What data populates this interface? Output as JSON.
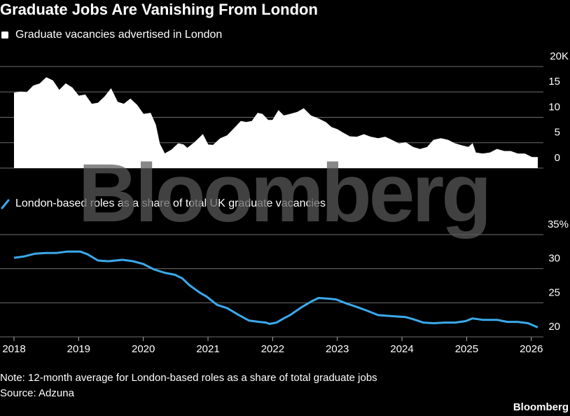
{
  "title": "Graduate Jobs Are Vanishing From London",
  "watermark": "Bloomberg",
  "note": "Note: 12-month average for London-based roles as a share of total graduate jobs",
  "source": "Source: Adzuna",
  "brand": "Bloomberg",
  "chart_data": [
    {
      "type": "area",
      "legend_marker": "square",
      "grid": true,
      "x": [
        2018.0,
        2018.1,
        2018.2,
        2018.3,
        2018.4,
        2018.5,
        2018.6,
        2018.7,
        2018.8,
        2018.9,
        2019.0,
        2019.1,
        2019.2,
        2019.3,
        2019.4,
        2019.5,
        2019.6,
        2019.7,
        2019.8,
        2019.9,
        2020.0,
        2020.11,
        2020.19,
        2020.25,
        2020.33,
        2020.44,
        2020.54,
        2020.62,
        2020.68,
        2020.79,
        2020.92,
        2021.0,
        2021.08,
        2021.19,
        2021.3,
        2021.39,
        2021.51,
        2021.59,
        2021.68,
        2021.77,
        2021.84,
        2021.93,
        2022.0,
        2022.09,
        2022.17,
        2022.27,
        2022.38,
        2022.48,
        2022.59,
        2022.71,
        2022.82,
        2022.91,
        2023.0,
        2023.09,
        2023.19,
        2023.3,
        2023.41,
        2023.52,
        2023.63,
        2023.74,
        2023.84,
        2023.95,
        2024.06,
        2024.17,
        2024.28,
        2024.39,
        2024.49,
        2024.6,
        2024.71,
        2024.82,
        2024.93,
        2025.03,
        2025.09,
        2025.14,
        2025.25,
        2025.36,
        2025.47,
        2025.58,
        2025.68,
        2025.79,
        2025.9,
        2026.01,
        2026.1
      ],
      "series": [
        {
          "name": "Graduate vacancies advertised in London",
          "color": "#ffffff",
          "values": [
            14.8,
            15.0,
            14.9,
            16.2,
            16.6,
            17.8,
            17.2,
            15.3,
            16.6,
            15.8,
            14.2,
            14.4,
            12.6,
            12.8,
            14.0,
            15.6,
            13.0,
            12.6,
            13.6,
            12.4,
            10.6,
            10.8,
            8.5,
            4.8,
            2.8,
            3.6,
            4.8,
            4.6,
            3.9,
            5.0,
            6.6,
            4.6,
            4.5,
            5.8,
            6.4,
            7.6,
            9.2,
            9.0,
            9.2,
            10.8,
            10.6,
            9.4,
            9.4,
            11.3,
            10.3,
            10.6,
            11.0,
            11.7,
            10.3,
            9.7,
            9.0,
            8.0,
            7.6,
            6.9,
            6.2,
            6.1,
            6.6,
            6.1,
            5.8,
            6.1,
            5.5,
            4.8,
            5.0,
            4.1,
            3.7,
            4.1,
            5.5,
            5.8,
            5.5,
            4.8,
            4.4,
            4.1,
            4.8,
            3.0,
            2.8,
            3.0,
            3.7,
            3.3,
            3.3,
            2.8,
            2.8,
            2.1,
            2.1
          ]
        }
      ],
      "xlim": [
        2018,
        2026.1
      ],
      "ylim": [
        0,
        20
      ],
      "yticks": [
        0,
        5,
        10,
        15,
        {
          "value": 20,
          "label": "20K"
        }
      ]
    },
    {
      "type": "line",
      "legend_marker": "slash",
      "grid": true,
      "x": [
        2018.0,
        2018.16,
        2018.32,
        2018.49,
        2018.65,
        2018.81,
        2019.03,
        2019.14,
        2019.3,
        2019.46,
        2019.68,
        2019.84,
        2020.0,
        2020.16,
        2020.33,
        2020.49,
        2020.6,
        2020.71,
        2020.87,
        2020.98,
        2021.14,
        2021.3,
        2021.46,
        2021.63,
        2021.79,
        2021.9,
        2021.95,
        2022.06,
        2022.17,
        2022.27,
        2022.44,
        2022.6,
        2022.71,
        2022.87,
        2022.98,
        2023.14,
        2023.3,
        2023.47,
        2023.63,
        2023.74,
        2023.9,
        2024.06,
        2024.17,
        2024.33,
        2024.49,
        2024.66,
        2024.82,
        2024.98,
        2025.09,
        2025.25,
        2025.47,
        2025.63,
        2025.79,
        2025.95,
        2026.1
      ],
      "series": [
        {
          "name": "London-based roles as a share of total UK graduate vacancies",
          "color": "#3ba9ea",
          "values": [
            31.6,
            31.8,
            32.2,
            32.3,
            32.3,
            32.5,
            32.5,
            32.1,
            31.2,
            31.1,
            31.3,
            31.1,
            30.7,
            29.9,
            29.4,
            29.1,
            28.6,
            27.6,
            26.5,
            25.9,
            24.7,
            24.2,
            23.3,
            22.4,
            22.2,
            22.1,
            21.9,
            22.1,
            22.7,
            23.2,
            24.3,
            25.2,
            25.7,
            25.6,
            25.5,
            24.9,
            24.4,
            23.8,
            23.2,
            23.1,
            23.0,
            22.9,
            22.6,
            22.1,
            22.0,
            22.1,
            22.1,
            22.3,
            22.7,
            22.5,
            22.5,
            22.2,
            22.2,
            22.0,
            21.4
          ]
        }
      ],
      "xlim": [
        2018,
        2026.1
      ],
      "ylim": [
        20,
        35
      ],
      "yticks": [
        20,
        25,
        30,
        {
          "value": 35,
          "label": "35%"
        }
      ],
      "xticks": [
        2018,
        2019,
        2020,
        2021,
        2022,
        2023,
        2024,
        2025,
        2026
      ]
    }
  ]
}
